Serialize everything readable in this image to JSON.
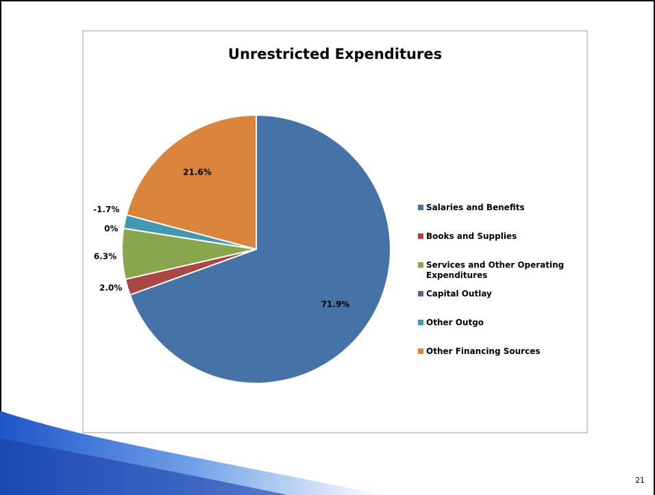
{
  "slide_number": "21",
  "chart_data": {
    "type": "pie",
    "title": "Unrestricted Expenditures",
    "categories": [
      "Salaries and Benefits",
      "Books and Supplies",
      "Services and Other Operating Expenditures",
      "Capital Outlay",
      "Other Outgo",
      "Other Financing Sources"
    ],
    "values": [
      71.9,
      2.0,
      6.3,
      0,
      -1.7,
      21.6
    ],
    "value_labels": [
      "71.9%",
      "2.0%",
      "6.3%",
      "0%",
      "-1.7%",
      "21.6%"
    ],
    "colors": [
      "#4572a7",
      "#aa4643",
      "#89a54e",
      "#71588f",
      "#4198af",
      "#db843d"
    ],
    "legend": "right"
  }
}
